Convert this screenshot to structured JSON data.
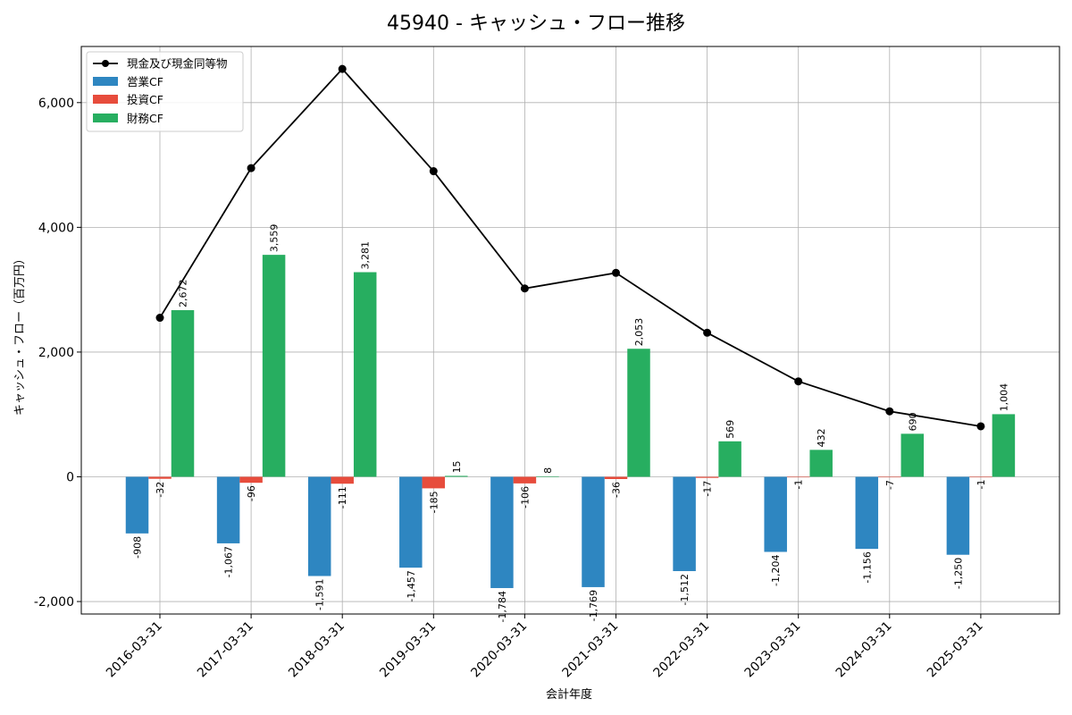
{
  "chart_data": {
    "type": "bar",
    "title": "45940 - キャッシュ・フロー推移",
    "xlabel": "会計年度",
    "ylabel": "キャッシュ・フロー（百万円）",
    "categories": [
      "2016-03-31",
      "2017-03-31",
      "2018-03-31",
      "2019-03-31",
      "2020-03-31",
      "2021-03-31",
      "2022-03-31",
      "2023-03-31",
      "2024-03-31",
      "2025-03-31"
    ],
    "ylim": [
      -2200,
      6900
    ],
    "yticks": [
      -2000,
      0,
      2000,
      4000,
      6000
    ],
    "ytick_labels": [
      "-2,000",
      "0",
      "2,000",
      "4,000",
      "6,000"
    ],
    "grid": true,
    "legend_position": "top-left",
    "series": [
      {
        "name": "営業CF",
        "kind": "bar",
        "color": "#2e86c1",
        "values": [
          -908,
          -1067,
          -1591,
          -1457,
          -1784,
          -1769,
          -1512,
          -1204,
          -1156,
          -1250
        ],
        "labels": [
          "-908",
          "-1,067",
          "-1,591",
          "-1,457",
          "-1,784",
          "-1,769",
          "-1,512",
          "-1,204",
          "-1,156",
          "-1,250"
        ]
      },
      {
        "name": "投資CF",
        "kind": "bar",
        "color": "#e74c3c",
        "values": [
          -32,
          -96,
          -111,
          -185,
          -106,
          -36,
          -17,
          -1,
          -7,
          -1
        ],
        "labels": [
          "-32",
          "-96",
          "-111",
          "-185",
          "-106",
          "-36",
          "-17",
          "-1",
          "-7",
          "-1"
        ]
      },
      {
        "name": "財務CF",
        "kind": "bar",
        "color": "#27ae60",
        "values": [
          2672,
          3559,
          3281,
          15,
          8,
          2053,
          569,
          432,
          690,
          1004
        ],
        "labels": [
          "2,672",
          "3,559",
          "3,281",
          "15",
          "8",
          "2,053",
          "569",
          "432",
          "690",
          "1,004"
        ]
      },
      {
        "name": "現金及び現金同等物",
        "kind": "line",
        "color": "#000000",
        "values": [
          2550,
          4950,
          6540,
          4900,
          3020,
          3270,
          2310,
          1530,
          1050,
          810
        ]
      }
    ]
  }
}
